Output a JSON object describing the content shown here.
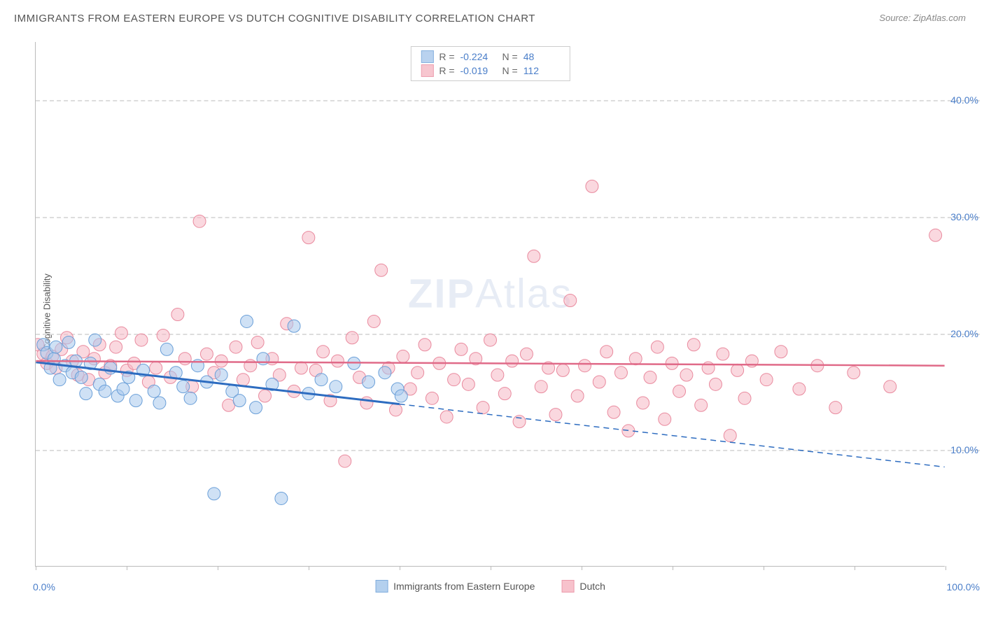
{
  "title": "IMMIGRANTS FROM EASTERN EUROPE VS DUTCH COGNITIVE DISABILITY CORRELATION CHART",
  "source_label": "Source:",
  "source_value": "ZipAtlas.com",
  "y_axis_label": "Cognitive Disability",
  "watermark": {
    "part1": "ZIP",
    "part2": "Atlas"
  },
  "chart": {
    "type": "scatter",
    "xlim": [
      0,
      100
    ],
    "ylim": [
      0,
      45
    ],
    "x_tick_label_min": "0.0%",
    "x_tick_label_max": "100.0%",
    "x_ticks": [
      0,
      10,
      20,
      30,
      40,
      50,
      60,
      70,
      80,
      90,
      100
    ],
    "y_gridlines": [
      10,
      20,
      30,
      40
    ],
    "y_tick_labels": [
      "10.0%",
      "20.0%",
      "30.0%",
      "40.0%"
    ],
    "background_color": "#ffffff",
    "grid_color": "#dddddd",
    "axis_color": "#bbbbbb",
    "tick_label_color": "#4a7ec9",
    "marker_radius": 9,
    "series": [
      {
        "name": "Immigrants from Eastern Europe",
        "fill": "#a8c8ec",
        "stroke": "#6a9fd8",
        "fill_opacity": 0.55,
        "r": -0.224,
        "n": 48,
        "trend": {
          "y_at_x0": 17.5,
          "y_at_x100": 8.5,
          "solid_until_x": 40
        },
        "points": [
          [
            0.8,
            19.0
          ],
          [
            1.2,
            18.3
          ],
          [
            1.6,
            17.0
          ],
          [
            2.0,
            17.8
          ],
          [
            2.2,
            18.8
          ],
          [
            2.6,
            16.0
          ],
          [
            3.2,
            17.2
          ],
          [
            3.6,
            19.2
          ],
          [
            4.0,
            16.6
          ],
          [
            4.4,
            17.6
          ],
          [
            5.0,
            16.2
          ],
          [
            5.5,
            14.8
          ],
          [
            6.0,
            17.4
          ],
          [
            6.5,
            19.4
          ],
          [
            7.0,
            15.6
          ],
          [
            7.6,
            15.0
          ],
          [
            8.2,
            17.0
          ],
          [
            9.0,
            14.6
          ],
          [
            9.6,
            15.2
          ],
          [
            10.2,
            16.2
          ],
          [
            11.0,
            14.2
          ],
          [
            11.8,
            16.8
          ],
          [
            13.0,
            15.0
          ],
          [
            13.6,
            14.0
          ],
          [
            14.4,
            18.6
          ],
          [
            15.4,
            16.6
          ],
          [
            16.2,
            15.4
          ],
          [
            17.0,
            14.4
          ],
          [
            17.8,
            17.2
          ],
          [
            18.8,
            15.8
          ],
          [
            19.6,
            6.2
          ],
          [
            20.4,
            16.4
          ],
          [
            21.6,
            15.0
          ],
          [
            22.4,
            14.2
          ],
          [
            23.2,
            21.0
          ],
          [
            24.2,
            13.6
          ],
          [
            25.0,
            17.8
          ],
          [
            26.0,
            15.6
          ],
          [
            27.0,
            5.8
          ],
          [
            28.4,
            20.6
          ],
          [
            30.0,
            14.8
          ],
          [
            31.4,
            16.0
          ],
          [
            33.0,
            15.4
          ],
          [
            35.0,
            17.4
          ],
          [
            36.6,
            15.8
          ],
          [
            38.4,
            16.6
          ],
          [
            39.8,
            15.2
          ],
          [
            40.2,
            14.6
          ]
        ]
      },
      {
        "name": "Dutch",
        "fill": "#f6b8c4",
        "stroke": "#e98a9e",
        "fill_opacity": 0.55,
        "r": -0.019,
        "n": 112,
        "trend": {
          "y_at_x0": 17.6,
          "y_at_x100": 17.2,
          "solid_until_x": 100
        },
        "points": [
          [
            0.2,
            19.0
          ],
          [
            0.8,
            18.2
          ],
          [
            1.2,
            17.4
          ],
          [
            1.8,
            18.0
          ],
          [
            2.2,
            17.0
          ],
          [
            2.8,
            18.6
          ],
          [
            3.4,
            19.6
          ],
          [
            4.0,
            17.6
          ],
          [
            4.6,
            16.4
          ],
          [
            5.2,
            18.4
          ],
          [
            5.8,
            16.0
          ],
          [
            6.4,
            17.8
          ],
          [
            7.0,
            19.0
          ],
          [
            7.6,
            16.6
          ],
          [
            8.2,
            17.2
          ],
          [
            8.8,
            18.8
          ],
          [
            9.4,
            20.0
          ],
          [
            10.0,
            16.8
          ],
          [
            10.8,
            17.4
          ],
          [
            11.6,
            19.4
          ],
          [
            12.4,
            15.8
          ],
          [
            13.2,
            17.0
          ],
          [
            14.0,
            19.8
          ],
          [
            14.8,
            16.2
          ],
          [
            15.6,
            21.6
          ],
          [
            16.4,
            17.8
          ],
          [
            17.2,
            15.4
          ],
          [
            18.0,
            29.6
          ],
          [
            18.8,
            18.2
          ],
          [
            19.6,
            16.6
          ],
          [
            20.4,
            17.6
          ],
          [
            21.2,
            13.8
          ],
          [
            22.0,
            18.8
          ],
          [
            22.8,
            16.0
          ],
          [
            23.6,
            17.2
          ],
          [
            24.4,
            19.2
          ],
          [
            25.2,
            14.6
          ],
          [
            26.0,
            17.8
          ],
          [
            26.8,
            16.4
          ],
          [
            27.6,
            20.8
          ],
          [
            28.4,
            15.0
          ],
          [
            29.2,
            17.0
          ],
          [
            30.0,
            28.2
          ],
          [
            30.8,
            16.8
          ],
          [
            31.6,
            18.4
          ],
          [
            32.4,
            14.2
          ],
          [
            33.2,
            17.6
          ],
          [
            34.0,
            9.0
          ],
          [
            34.8,
            19.6
          ],
          [
            35.6,
            16.2
          ],
          [
            36.4,
            14.0
          ],
          [
            37.2,
            21.0
          ],
          [
            38.0,
            25.4
          ],
          [
            38.8,
            17.0
          ],
          [
            39.6,
            13.4
          ],
          [
            40.4,
            18.0
          ],
          [
            41.2,
            15.2
          ],
          [
            42.0,
            16.6
          ],
          [
            42.8,
            19.0
          ],
          [
            43.6,
            14.4
          ],
          [
            44.4,
            17.4
          ],
          [
            45.2,
            12.8
          ],
          [
            46.0,
            16.0
          ],
          [
            46.8,
            18.6
          ],
          [
            47.6,
            15.6
          ],
          [
            48.4,
            17.8
          ],
          [
            49.2,
            13.6
          ],
          [
            50.0,
            19.4
          ],
          [
            50.8,
            16.4
          ],
          [
            51.6,
            14.8
          ],
          [
            52.4,
            17.6
          ],
          [
            53.2,
            12.4
          ],
          [
            54.0,
            18.2
          ],
          [
            54.8,
            26.6
          ],
          [
            55.6,
            15.4
          ],
          [
            56.4,
            17.0
          ],
          [
            57.2,
            13.0
          ],
          [
            58.0,
            16.8
          ],
          [
            58.8,
            22.8
          ],
          [
            59.6,
            14.6
          ],
          [
            60.4,
            17.2
          ],
          [
            61.2,
            32.6
          ],
          [
            62.0,
            15.8
          ],
          [
            62.8,
            18.4
          ],
          [
            63.6,
            13.2
          ],
          [
            64.4,
            16.6
          ],
          [
            65.2,
            11.6
          ],
          [
            66.0,
            17.8
          ],
          [
            66.8,
            14.0
          ],
          [
            67.6,
            16.2
          ],
          [
            68.4,
            18.8
          ],
          [
            69.2,
            12.6
          ],
          [
            70.0,
            17.4
          ],
          [
            70.8,
            15.0
          ],
          [
            71.6,
            16.4
          ],
          [
            72.4,
            19.0
          ],
          [
            73.2,
            13.8
          ],
          [
            74.0,
            17.0
          ],
          [
            74.8,
            15.6
          ],
          [
            75.6,
            18.2
          ],
          [
            76.4,
            11.2
          ],
          [
            77.2,
            16.8
          ],
          [
            78.0,
            14.4
          ],
          [
            78.8,
            17.6
          ],
          [
            80.4,
            16.0
          ],
          [
            82.0,
            18.4
          ],
          [
            84.0,
            15.2
          ],
          [
            86.0,
            17.2
          ],
          [
            88.0,
            13.6
          ],
          [
            90.0,
            16.6
          ],
          [
            94.0,
            15.4
          ],
          [
            99.0,
            28.4
          ]
        ]
      }
    ],
    "legend_labels": {
      "r_label": "R =",
      "n_label": "N ="
    }
  }
}
